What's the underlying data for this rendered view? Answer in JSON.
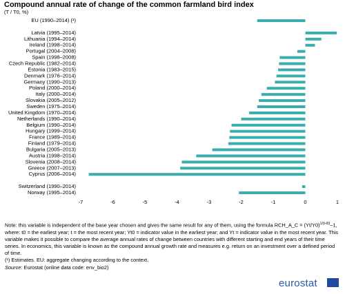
{
  "chart_data": {
    "type": "bar",
    "orientation": "horizontal",
    "title": "Compound annual rate of change of the common farmland bird index",
    "subtitle": "(T / T0, %)",
    "categories": [
      "EU (1990–2014)  (¹)",
      null,
      "Latvia  (1995–2014)",
      "Lithuania  (1994–2014)",
      "Ireland  (1998–2014)",
      "Portugal  (2004–2008)",
      "Spain  (1998–2008)",
      "Czech Republic  (1982–2014)",
      "Estonia  (1983–2015)",
      "Denmark  (1976–2014)",
      "Germany  (1990–2013)",
      "Poland  (2000–2014)",
      "Italy  (2000–2014)",
      "Slovakia  (2005–2012)",
      "Sweden  (1975–2014)",
      "United Kingdom  (1970–2014)",
      "Netherlands  (1990–2014)",
      "Belgium  (1990–2014)",
      "Hungary  (1999–2014)",
      "France  (1989–2014)",
      "Finland  (1979–2014)",
      "Bulgaria  (2005–2013)",
      "Austria  (1998–2014)",
      "Slovenia  (2008–2014)",
      "Greece  (2007–2013)",
      "Cyprus  (2006–2014)",
      null,
      "Switzerland  (1990–2014)",
      "Norway  (1995–2014)"
    ],
    "values": [
      -1.5,
      null,
      0.98,
      0.5,
      0.3,
      -0.25,
      -0.8,
      -0.82,
      -0.85,
      -0.9,
      -0.95,
      -1.2,
      -1.37,
      -1.45,
      -1.5,
      -1.75,
      -2.0,
      -2.3,
      -2.35,
      -2.37,
      -2.4,
      -2.9,
      -3.4,
      -3.85,
      -3.9,
      -6.75,
      null,
      -0.1,
      -2.07
    ],
    "color": "#3aaeae",
    "xlim": [
      -7,
      1
    ],
    "xticks": [
      -7,
      -6,
      -5,
      -4,
      -3,
      -2,
      -1,
      0,
      1
    ],
    "grid": false
  },
  "note": {
    "before": "Note: this variable is independent of the base year chosen and gives the same result for any of them, using the formula RCH_A_C = (Yt/Y0)",
    "superscript": "1/(t-t0)",
    "after": "–1, where: t0 = the earliest year; t = the most recent year; Yt0 = indicator value in the earliest year; and Yt = indicator value in the most recent year. This variable makes it possible to compare the average annual rates of change between countries with different starting and end years of their time series. In economics, this variable is known as the compound annual growth rate and measures e.g. return on an investment over a defined period of time.",
    "estimates": "(¹) Estimates. EU: aggregate changing according to the context.",
    "source_label": "Source:",
    "source": "Eurostat (online data code: env_bio2)"
  },
  "logo": "eurostat"
}
